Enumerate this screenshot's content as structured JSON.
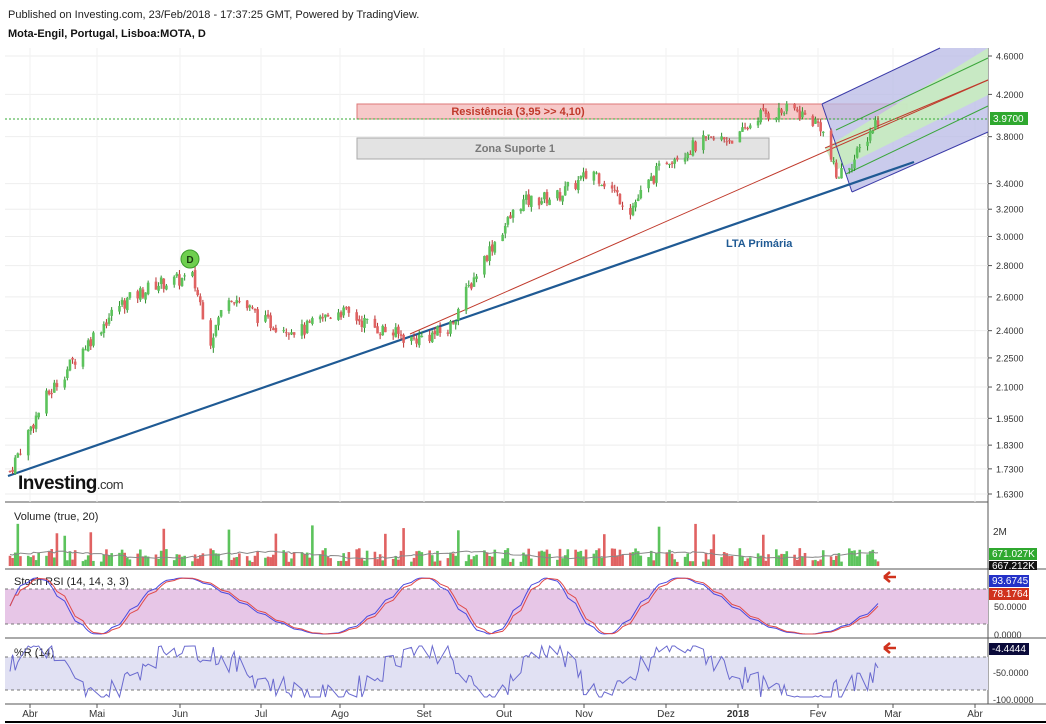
{
  "header": {
    "published": "Published on Investing.com, 23/Feb/2018 - 17:37:25 GMT, Powered by TradingView.",
    "symbol": "Mota-Engil, Portugal, Lisboa:MOTA, D"
  },
  "brand": {
    "logo": "Investing",
    "logo_suffix": ".com"
  },
  "colors": {
    "up": "#5cc35c",
    "down": "#e06262",
    "trend_line": "#1f5a94",
    "resistance_fill": "#f6c9c9",
    "support_fill": "#e3e3e3",
    "channel_fill": "#b8b9e6",
    "channel_mid_fill": "#c8ecc0",
    "stoch_band": "#e7c6e7",
    "wr_band": "#e1e1f3",
    "price_line": "#33aa33"
  },
  "chart_data": [
    {
      "type": "candlestick",
      "title": "Mota-Engil, Portugal, Lisboa:MOTA, D",
      "x_ticks": [
        "Abr",
        "Mai",
        "Jun",
        "Jul",
        "Ago",
        "Set",
        "Out",
        "Nov",
        "Dez",
        "2018",
        "Fev",
        "Mar",
        "Abr"
      ],
      "y_ticks": [
        4.6,
        4.2,
        3.8,
        3.4,
        3.2,
        3.0,
        2.8,
        2.6,
        2.4,
        2.25,
        2.1,
        1.95,
        1.83,
        1.73,
        1.63
      ],
      "y_tick_labels": [
        "4.6000",
        "4.2000",
        "3.8000",
        "3.4000",
        "3.2000",
        "3.0000",
        "2.8000",
        "2.6000",
        "2.4000",
        "2.2500",
        "2.1000",
        "1.9500",
        "1.8300",
        "1.7300",
        "1.6300"
      ],
      "ylim": [
        1.6,
        4.7
      ],
      "scale": "log",
      "last_price": 3.97,
      "last_price_label": "3.9700",
      "series_close_keypoints": [
        [
          "2017-03-27",
          1.72
        ],
        [
          "2017-04-10",
          2.05
        ],
        [
          "2017-04-24",
          2.3
        ],
        [
          "2017-05-08",
          2.55
        ],
        [
          "2017-05-22",
          2.68
        ],
        [
          "2017-06-05",
          2.72
        ],
        [
          "2017-06-12",
          2.35
        ],
        [
          "2017-06-19",
          2.62
        ],
        [
          "2017-07-03",
          2.45
        ],
        [
          "2017-07-17",
          2.4
        ],
        [
          "2017-07-31",
          2.52
        ],
        [
          "2017-08-14",
          2.42
        ],
        [
          "2017-08-28",
          2.35
        ],
        [
          "2017-09-11",
          2.4
        ],
        [
          "2017-09-25",
          2.85
        ],
        [
          "2017-10-09",
          3.25
        ],
        [
          "2017-10-23",
          3.3
        ],
        [
          "2017-11-06",
          3.5
        ],
        [
          "2017-11-20",
          3.2
        ],
        [
          "2017-12-04",
          3.6
        ],
        [
          "2017-12-18",
          3.75
        ],
        [
          "2018-01-01",
          3.8
        ],
        [
          "2018-01-08",
          4.0
        ],
        [
          "2018-01-22",
          4.05
        ],
        [
          "2018-02-01",
          3.9
        ],
        [
          "2018-02-07",
          3.45
        ],
        [
          "2018-02-14",
          3.6
        ],
        [
          "2018-02-23",
          3.97
        ]
      ],
      "annotations": [
        {
          "text": "Resistência (3,95 >> 4,10)",
          "y_range": [
            3.95,
            4.1
          ],
          "x_range": [
            "2017-08-21",
            "2018-02-20"
          ]
        },
        {
          "text": "Zona Suporte 1",
          "y_range": [
            3.58,
            3.72
          ],
          "x_range": [
            "2017-08-21",
            "2018-01-05"
          ]
        },
        {
          "text": "LTA Primária",
          "kind": "trendline",
          "from": [
            "2017-03-27",
            1.7
          ],
          "to": [
            "2018-02-25",
            3.48
          ]
        },
        {
          "text": "D",
          "kind": "event-marker",
          "at": [
            "2017-06-01",
            2.86
          ]
        }
      ],
      "pitchfork": {
        "pivots": [
          [
            "2017-09-05",
            2.3
          ],
          [
            "2018-01-29",
            4.05
          ],
          [
            "2018-02-09",
            3.35
          ]
        ]
      }
    },
    {
      "type": "bar",
      "title": "Volume (true, 20)",
      "y_ticks_labels": [
        "2M"
      ],
      "values_labels": [
        "671.027K",
        "667.212K"
      ]
    },
    {
      "type": "line",
      "title": "Stoch RSI (14, 14, 3, 3)",
      "y_ticks_labels": [
        "50.0000",
        "0.0000"
      ],
      "values_labels": [
        "93.6745",
        "78.1764"
      ],
      "bands": [
        20,
        80
      ]
    },
    {
      "type": "line",
      "title": "%R (14)",
      "y_ticks_labels": [
        "-4.4444",
        "-50.0000",
        "-100.0000"
      ],
      "bands": [
        -80,
        -20
      ]
    }
  ]
}
